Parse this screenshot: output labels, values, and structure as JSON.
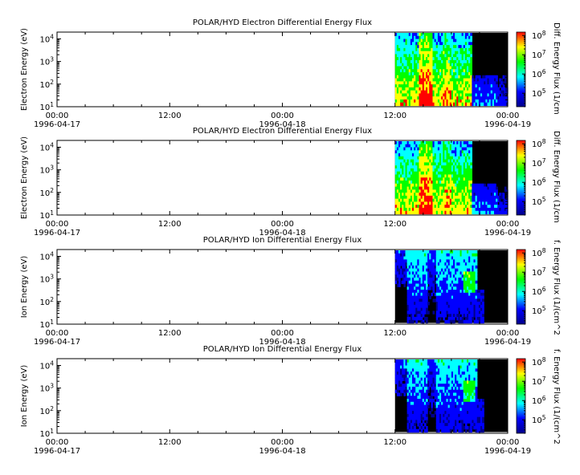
{
  "chart_data": [
    {
      "type": "heatmap",
      "title": "POLAR/HYD  Electron Differential Energy Flux",
      "ylabel": "Electron Energy (eV)",
      "zlabel": "Diff. Energy Flux (1/cm",
      "y_scale": "log",
      "ylim": [
        10,
        20000
      ],
      "y_ticks": [
        {
          "base": "10",
          "exp": "1"
        },
        {
          "base": "10",
          "exp": "2"
        },
        {
          "base": "10",
          "exp": "3"
        },
        {
          "base": "10",
          "exp": "4"
        }
      ],
      "z_scale": "log",
      "zlim": [
        20000,
        150000000
      ],
      "z_ticks": [
        {
          "base": "10",
          "exp": "5"
        },
        {
          "base": "10",
          "exp": "6"
        },
        {
          "base": "10",
          "exp": "7"
        },
        {
          "base": "10",
          "exp": "8"
        }
      ],
      "x_range": [
        "1996-04-17 00:00",
        "1996-04-19 00:00"
      ],
      "x_ticks": [
        {
          "time": "00:00",
          "date": "1996-04-17"
        },
        {
          "time": "12:00",
          "date": ""
        },
        {
          "time": "00:00",
          "date": "1996-04-18"
        },
        {
          "time": "12:00",
          "date": ""
        },
        {
          "time": "00:00",
          "date": "1996-04-19"
        }
      ],
      "data_start": "1996-04-18 12:00",
      "data_end": "1996-04-19 00:00",
      "variant": "electron"
    },
    {
      "type": "heatmap",
      "title": "POLAR/HYD  Electron Differential Energy Flux",
      "ylabel": "Electron Energy (eV)",
      "zlabel": "Diff. Energy Flux (1/cm",
      "y_scale": "log",
      "ylim": [
        10,
        20000
      ],
      "y_ticks": [
        {
          "base": "10",
          "exp": "1"
        },
        {
          "base": "10",
          "exp": "2"
        },
        {
          "base": "10",
          "exp": "3"
        },
        {
          "base": "10",
          "exp": "4"
        }
      ],
      "z_scale": "log",
      "zlim": [
        20000,
        150000000
      ],
      "z_ticks": [
        {
          "base": "10",
          "exp": "5"
        },
        {
          "base": "10",
          "exp": "6"
        },
        {
          "base": "10",
          "exp": "7"
        },
        {
          "base": "10",
          "exp": "8"
        }
      ],
      "x_range": [
        "1996-04-17 00:00",
        "1996-04-19 00:00"
      ],
      "x_ticks": [
        {
          "time": "00:00",
          "date": "1996-04-17"
        },
        {
          "time": "12:00",
          "date": ""
        },
        {
          "time": "00:00",
          "date": "1996-04-18"
        },
        {
          "time": "12:00",
          "date": ""
        },
        {
          "time": "00:00",
          "date": "1996-04-19"
        }
      ],
      "data_start": "1996-04-18 12:00",
      "data_end": "1996-04-19 00:00",
      "variant": "electron"
    },
    {
      "type": "heatmap",
      "title": "POLAR/HYD  Ion Differential Energy Flux",
      "ylabel": "Ion Energy (eV)",
      "zlabel": "f. Energy Flux (1/(cm^2",
      "y_scale": "log",
      "ylim": [
        10,
        20000
      ],
      "y_ticks": [
        {
          "base": "10",
          "exp": "1"
        },
        {
          "base": "10",
          "exp": "2"
        },
        {
          "base": "10",
          "exp": "3"
        },
        {
          "base": "10",
          "exp": "4"
        }
      ],
      "z_scale": "log",
      "zlim": [
        20000,
        150000000
      ],
      "z_ticks": [
        {
          "base": "10",
          "exp": "5"
        },
        {
          "base": "10",
          "exp": "6"
        },
        {
          "base": "10",
          "exp": "7"
        },
        {
          "base": "10",
          "exp": "8"
        }
      ],
      "x_range": [
        "1996-04-17 00:00",
        "1996-04-19 00:00"
      ],
      "x_ticks": [
        {
          "time": "00:00",
          "date": "1996-04-17"
        },
        {
          "time": "12:00",
          "date": ""
        },
        {
          "time": "00:00",
          "date": "1996-04-18"
        },
        {
          "time": "12:00",
          "date": ""
        },
        {
          "time": "00:00",
          "date": "1996-04-19"
        }
      ],
      "data_start": "1996-04-18 12:00",
      "data_end": "1996-04-19 00:00",
      "variant": "ion"
    },
    {
      "type": "heatmap",
      "title": "POLAR/HYD  Ion Differential Energy Flux",
      "ylabel": "Ion Energy (eV)",
      "zlabel": "f. Energy Flux (1/(cm^2",
      "y_scale": "log",
      "ylim": [
        10,
        20000
      ],
      "y_ticks": [
        {
          "base": "10",
          "exp": "1"
        },
        {
          "base": "10",
          "exp": "2"
        },
        {
          "base": "10",
          "exp": "3"
        },
        {
          "base": "10",
          "exp": "4"
        }
      ],
      "z_scale": "log",
      "zlim": [
        20000,
        150000000
      ],
      "z_ticks": [
        {
          "base": "10",
          "exp": "5"
        },
        {
          "base": "10",
          "exp": "6"
        },
        {
          "base": "10",
          "exp": "7"
        },
        {
          "base": "10",
          "exp": "8"
        }
      ],
      "x_range": [
        "1996-04-17 00:00",
        "1996-04-19 00:00"
      ],
      "x_ticks": [
        {
          "time": "00:00",
          "date": "1996-04-17"
        },
        {
          "time": "12:00",
          "date": ""
        },
        {
          "time": "00:00",
          "date": "1996-04-18"
        },
        {
          "time": "12:00",
          "date": ""
        },
        {
          "time": "00:00",
          "date": "1996-04-19"
        }
      ],
      "data_start": "1996-04-18 12:00",
      "data_end": "1996-04-19 00:00",
      "variant": "ion"
    }
  ],
  "colorscale": [
    "#00008b",
    "#0000ff",
    "#00ffff",
    "#00ff00",
    "#ffff00",
    "#ff0000"
  ],
  "background_fill": "#000000"
}
